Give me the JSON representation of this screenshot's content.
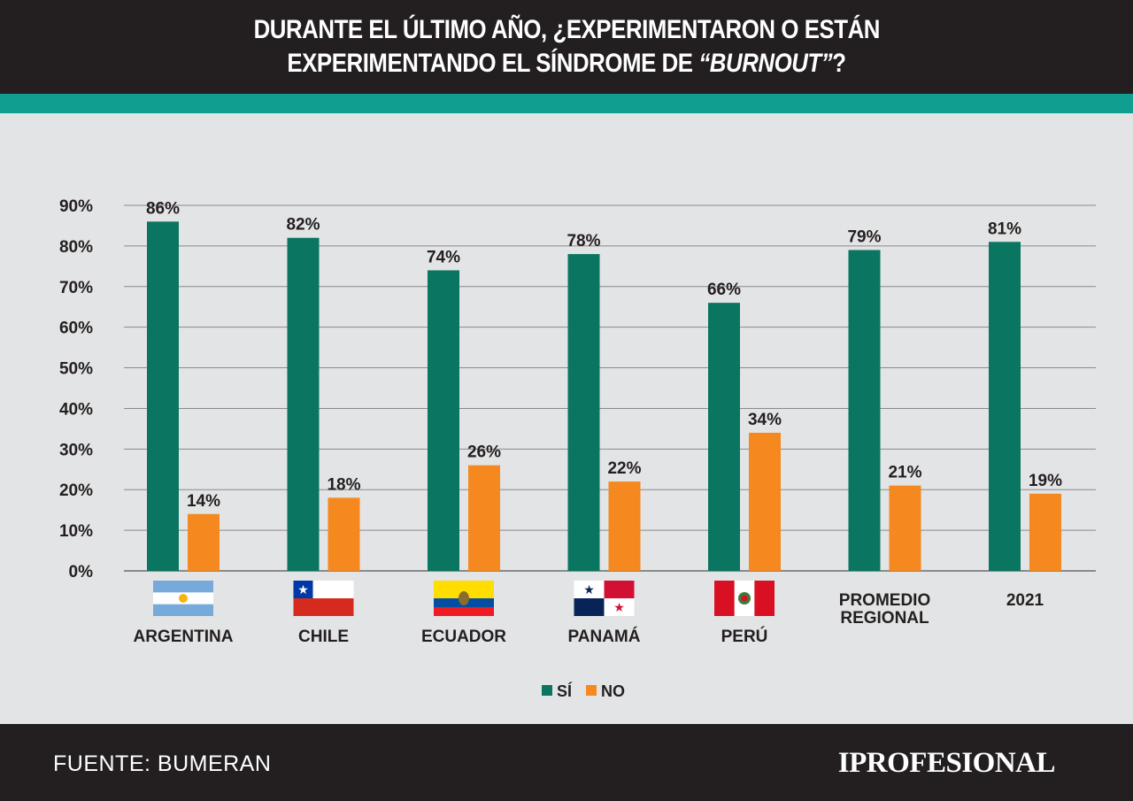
{
  "header": {
    "title_line1": "DURANTE EL ÚLTIMO AÑO, ¿EXPERIMENTARON O ESTÁN",
    "title_line2_a": "EXPERIMENTANDO EL SÍNDROME DE ",
    "title_line2_b": "“BURNOUT”",
    "title_line2_c": "?"
  },
  "colors": {
    "si": "#0a7560",
    "no": "#f5891f",
    "accent": "#0f9e8f",
    "dark": "#231f20"
  },
  "chart_data": {
    "type": "bar",
    "title": "DURANTE EL ÚLTIMO AÑO, ¿EXPERIMENTARON O ESTÁN EXPERIMENTANDO EL SÍNDROME DE “BURNOUT”?",
    "categories": [
      "ARGENTINA",
      "CHILE",
      "ECUADOR",
      "PANAMÁ",
      "PERÚ",
      "PROMEDIO REGIONAL",
      "2021"
    ],
    "category_flags": [
      "flag-argentina",
      "flag-chile",
      "flag-ecuador",
      "flag-panama",
      "flag-peru",
      null,
      null
    ],
    "series": [
      {
        "name": "SÍ",
        "values": [
          86,
          82,
          74,
          78,
          66,
          79,
          81
        ]
      },
      {
        "name": "NO",
        "values": [
          14,
          18,
          26,
          22,
          34,
          21,
          19
        ]
      }
    ],
    "data_labels": [
      [
        "86%",
        "82%",
        "74%",
        "78%",
        "66%",
        "79%",
        "81%"
      ],
      [
        "14%",
        "18%",
        "26%",
        "22%",
        "34%",
        "21%",
        "19%"
      ]
    ],
    "ylim": [
      0,
      90
    ],
    "yticks": [
      "0%",
      "10%",
      "20%",
      "30%",
      "40%",
      "50%",
      "60%",
      "70%",
      "80%",
      "90%"
    ],
    "grid": true,
    "legend": "bottom-center"
  },
  "footer": {
    "source": "FUENTE: BUMERAN",
    "brand": "IPROFESIONAL"
  }
}
